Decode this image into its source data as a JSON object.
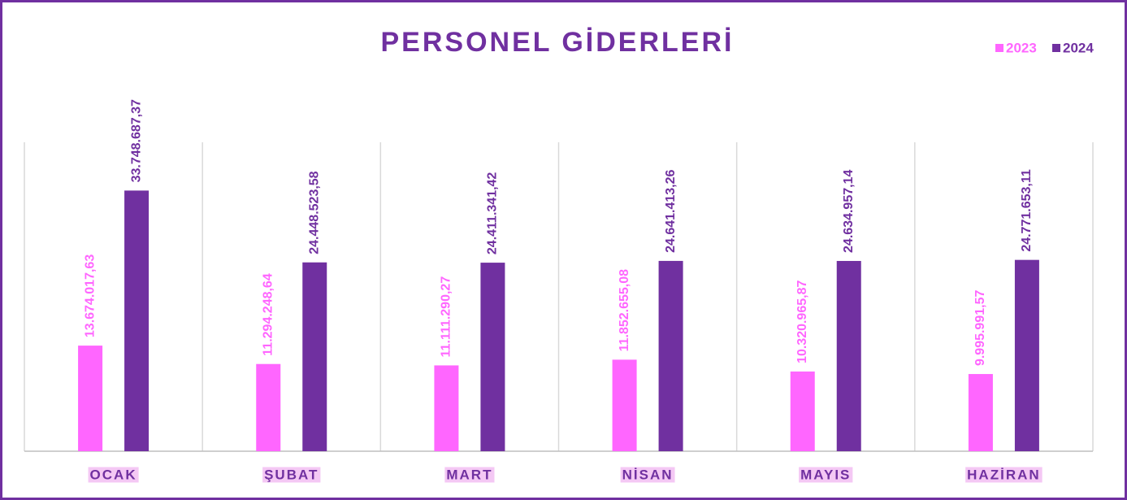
{
  "chart_data": {
    "type": "bar",
    "title": "PERSONEL GİDERLERİ",
    "categories": [
      "OCAK",
      "ŞUBAT",
      "MART",
      "NİSAN",
      "MAYIS",
      "HAZİRAN"
    ],
    "series": [
      {
        "name": "2023",
        "color": "#ff66ff",
        "values": [
          13674017.63,
          11294248.64,
          11111290.27,
          11852655.08,
          10320965.87,
          9995991.57
        ],
        "value_labels": [
          "13.674.017,63",
          "11.294.248,64",
          "11.111.290,27",
          "11.852.655,08",
          "10.320.965,87",
          "9.995.991,57"
        ]
      },
      {
        "name": "2024",
        "color": "#7030a0",
        "values": [
          33748687.37,
          24448523.58,
          24411341.42,
          24641413.26,
          24634957.14,
          24771653.11
        ],
        "value_labels": [
          "33.748.687,37",
          "24.448.523,58",
          "24.411.341,42",
          "24.641.413,26",
          "24.634.957,14",
          "24.771.653,11"
        ]
      }
    ],
    "ylim": [
      0,
      40000000
    ]
  }
}
